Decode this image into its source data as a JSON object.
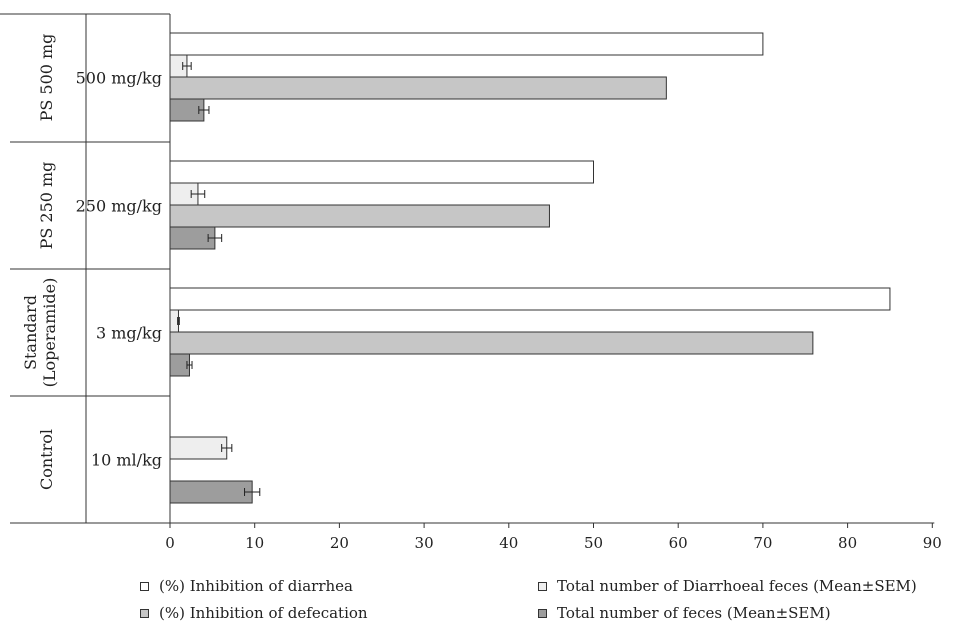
{
  "chart_data": {
    "type": "bar",
    "orientation": "horizontal",
    "groups": [
      {
        "name": "PS 500 mg",
        "dose": "500 mg/kg"
      },
      {
        "name": "PS 250 mg",
        "dose": "250 mg/kg"
      },
      {
        "name": "Standard (Loperamide)",
        "dose": "3 mg/kg"
      },
      {
        "name": "Control",
        "dose": "10 ml/kg"
      }
    ],
    "series": [
      {
        "name": "(%) Inhibition of diarrhea",
        "color": "#ffffff",
        "values": [
          70,
          50,
          85,
          null
        ],
        "errors": [
          null,
          null,
          null,
          null
        ]
      },
      {
        "name": "Total number of Diarrhoeal feces (Mean±SEM)",
        "color": "#eeeeee",
        "values": [
          2,
          3.3,
          1,
          6.7
        ],
        "errors": [
          0.5,
          0.8,
          0.1,
          0.6
        ]
      },
      {
        "name": "(%) Inhibition of defecation",
        "color": "#c6c6c6",
        "values": [
          58.6,
          44.8,
          75.9,
          null
        ],
        "errors": [
          null,
          null,
          null,
          null
        ]
      },
      {
        "name": "Total number of feces (Mean±SEM)",
        "color": "#9d9d9d",
        "values": [
          4,
          5.3,
          2.3,
          9.7
        ],
        "errors": [
          0.6,
          0.8,
          0.3,
          0.9
        ]
      }
    ],
    "xlim": [
      0,
      90
    ],
    "xticks": [
      0,
      10,
      20,
      30,
      40,
      50,
      60,
      70,
      80,
      90
    ],
    "legend_position": "bottom",
    "grid": false
  }
}
